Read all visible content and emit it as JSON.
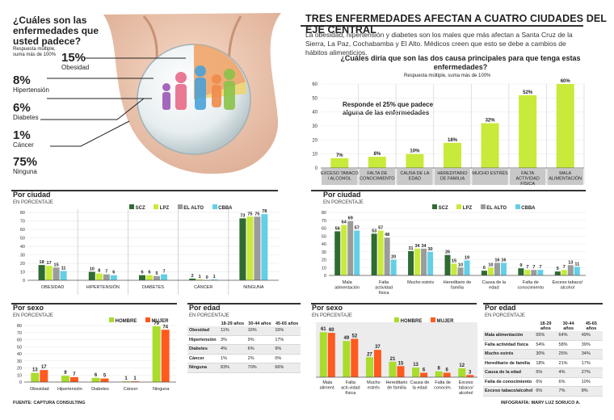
{
  "colors": {
    "scz": "#2f6b33",
    "lpz": "#c8ea3a",
    "elalto": "#9b9b9b",
    "cbba": "#63cfe6",
    "hombre": "#a9dc2c",
    "mujer": "#ff5a1f",
    "green_dark": "#7db73a",
    "green_light": "#c8ea3a",
    "accent_line": "#e25a20"
  },
  "header": {
    "title": "TRES ENFERMEDADES AFECTAN A CUATRO CIUDADES DEL EJE CENTRAL",
    "intro": "La obesidad, hipertensión y diabetes son los males que más afectan a Santa Cruz de la Sierra, La Paz, Cochabamba y El Alto. Médicos creen que esto se debe a cambios de hábitos alimenticios."
  },
  "left_top": {
    "question": "¿Cuáles son las enfermedades que usted padece?",
    "note": "Respuesta múltiple, suma más de 100%",
    "items": [
      {
        "pct": "15%",
        "label": "Obesidad"
      },
      {
        "pct": "8%",
        "label": "Hipertensión"
      },
      {
        "pct": "6%",
        "label": "Diabetes"
      },
      {
        "pct": "1%",
        "label": "Cáncer"
      },
      {
        "pct": "75%",
        "label": "Ninguna"
      }
    ]
  },
  "right_top": {
    "question": "¿Cuáles diría que son las dos causa principales para que tenga estas enfermedades?",
    "note": "Respuesta múltiple, suma más de 100%",
    "callout": "Responde el 25% que padece alguna de las enfermedades"
  },
  "panels": {
    "por_ciudad": "Por ciudad",
    "en_porcentaje": "EN PORCENTAJE",
    "por_sexo": "Por sexo",
    "por_edad": "Por edad"
  },
  "legend_city": [
    "SCZ",
    "LPZ",
    "EL ALTO",
    "CBBA"
  ],
  "legend_sex": [
    "HOMBRE",
    "MUJER"
  ],
  "table_left": {
    "headers": [
      "18-29 años",
      "30-44 años",
      "45-65 años"
    ],
    "rows": [
      [
        "Obesidad",
        "11%",
        "16%",
        "16%"
      ],
      [
        "Hipertensión",
        "3%",
        "9%",
        "17%"
      ],
      [
        "Diabetes",
        "4%",
        "6%",
        "9%"
      ],
      [
        "Cáncer",
        "1%",
        "2%",
        "0%"
      ],
      [
        "Ninguna",
        "83%",
        "70%",
        "66%"
      ]
    ]
  },
  "table_right": {
    "headers": [
      "18-29 años",
      "30-44 años",
      "45-65 años"
    ],
    "rows": [
      [
        "Mala alimentación",
        "65%",
        "64%",
        "49%"
      ],
      [
        "Falta actividad física",
        "54%",
        "58%",
        "39%"
      ],
      [
        "Mucho estrés",
        "30%",
        "25%",
        "34%"
      ],
      [
        "Hereditario de familia",
        "18%",
        "21%",
        "17%"
      ],
      [
        "Causa de la edad",
        "5%",
        "4%",
        "27%"
      ],
      [
        "Falta de conocimiento",
        "6%",
        "6%",
        "10%"
      ],
      [
        "Exceso tabaco/alcohol",
        "6%",
        "7%",
        "8%"
      ]
    ]
  },
  "footer": {
    "source": "FUENTE: CAPTURA CONSULTING",
    "credit": "INFOGRAFÍA: MARY LUZ SORUCO A."
  },
  "chart_data": [
    {
      "id": "causes",
      "type": "bar",
      "categories": [
        "EXCESO TABACO / ALCOHOL",
        "FALTA DE CONOCIMIENTO",
        "CAUSA DE LA EDAD",
        "HEREDITARIO DE FAMILIA",
        "MUCHO ESTRÉS",
        "FALTA ACTIVIDAD FÍSICA",
        "MALA ALIMENTACIÓN"
      ],
      "values": [
        7,
        8,
        10,
        18,
        32,
        52,
        60
      ],
      "ylim": [
        0,
        60
      ],
      "yticks": [
        0,
        10,
        20,
        30,
        40,
        50,
        60
      ]
    },
    {
      "id": "disease_city",
      "type": "bar",
      "categories": [
        "OBESIDAD",
        "HIPERTENSIÓN",
        "DIABETES",
        "CÁNCER",
        "NINGUNA"
      ],
      "series": [
        {
          "name": "SCZ",
          "values": [
            18,
            10,
            6,
            2,
            73
          ]
        },
        {
          "name": "LPZ",
          "values": [
            17,
            8,
            6,
            1,
            75
          ]
        },
        {
          "name": "EL ALTO",
          "values": [
            15,
            7,
            5,
            0,
            75
          ]
        },
        {
          "name": "CBBA",
          "values": [
            11,
            6,
            7,
            1,
            78
          ]
        }
      ],
      "ylim": [
        0,
        80
      ],
      "yticks": [
        0,
        10,
        20,
        30,
        40,
        50,
        60,
        70,
        80
      ]
    },
    {
      "id": "disease_sex",
      "type": "bar",
      "categories": [
        "Obesidad",
        "Hipertensión",
        "Diabetes",
        "Cáncer",
        "Ninguna"
      ],
      "series": [
        {
          "name": "HOMBRE",
          "values": [
            13,
            9,
            6,
            1,
            79
          ]
        },
        {
          "name": "MUJER",
          "values": [
            17,
            7,
            5,
            1,
            74
          ]
        }
      ],
      "ylim": [
        0,
        80
      ],
      "yticks": [
        0,
        10,
        20,
        30,
        40,
        50,
        60,
        70,
        80
      ]
    },
    {
      "id": "causes_city",
      "type": "bar",
      "categories": [
        "Mala alimentación",
        "Falta actividad física",
        "Mucho estrés",
        "Hereditario de familia",
        "Causa de la edad",
        "Falta de conocimiento",
        "Exceso tabaco/ alcohol"
      ],
      "series": [
        {
          "name": "SCZ",
          "values": [
            56,
            53,
            31,
            26,
            6,
            9,
            5
          ]
        },
        {
          "name": "LPZ",
          "values": [
            64,
            57,
            34,
            15,
            10,
            7,
            7
          ]
        },
        {
          "name": "EL ALTO",
          "values": [
            69,
            48,
            34,
            10,
            16,
            7,
            13
          ]
        },
        {
          "name": "CBBA",
          "values": [
            57,
            20,
            30,
            19,
            16,
            7,
            11
          ]
        }
      ],
      "ylim": [
        0,
        80
      ],
      "yticks": [
        0,
        10,
        20,
        30,
        40,
        50,
        60,
        70,
        80
      ]
    },
    {
      "id": "causes_sex",
      "type": "bar",
      "categories": [
        "Mala aliment.",
        "Falta acti-vidad física",
        "Mucho estrés",
        "Hereditario de familia",
        "Causa de la edad",
        "Falta de conocim.",
        "Exceso tabaco/ alcohol"
      ],
      "series": [
        {
          "name": "HOMBRE",
          "values": [
            61,
            49,
            27,
            21,
            13,
            8,
            12
          ]
        },
        {
          "name": "MUJER",
          "values": [
            60,
            52,
            37,
            15,
            6,
            6,
            3
          ]
        }
      ],
      "ylim": [
        0,
        70
      ],
      "yticks": []
    }
  ]
}
